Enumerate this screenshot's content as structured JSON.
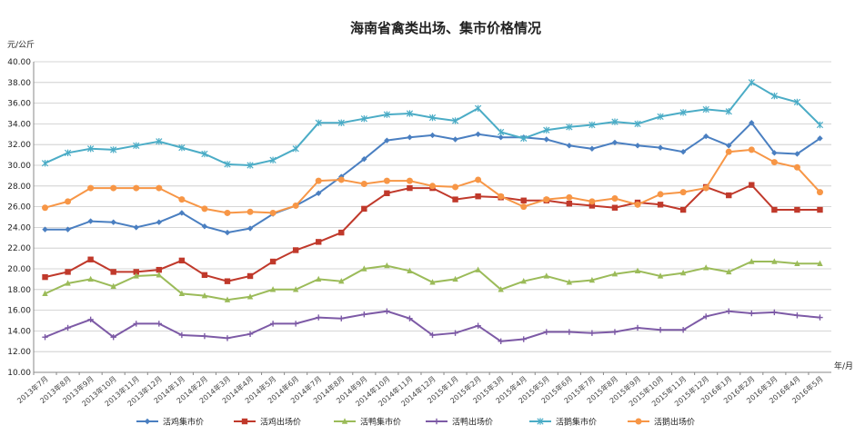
{
  "chart_data": {
    "type": "line",
    "title": "海南省禽类出场、集市价格情况",
    "ylabel": "元/公斤",
    "xlabel": "年/月",
    "ylim": [
      10,
      40
    ],
    "yticks": [
      "10.00",
      "12.00",
      "14.00",
      "16.00",
      "18.00",
      "20.00",
      "22.00",
      "24.00",
      "26.00",
      "28.00",
      "30.00",
      "32.00",
      "34.00",
      "36.00",
      "38.00",
      "40.00"
    ],
    "grid": true,
    "legend_position": "bottom",
    "categories": [
      "2013年7月",
      "2013年8月",
      "2013年9月",
      "2013年10月",
      "2013年11月",
      "2013年12月",
      "2014年1月",
      "2014年2月",
      "2014年3月",
      "2014年4月",
      "2014年5月",
      "2014年6月",
      "2014年7月",
      "2014年8月",
      "2014年9月",
      "2014年10月",
      "2014年11月",
      "2014年12月",
      "2015年1月",
      "2015年2月",
      "2015年3月",
      "2015年4月",
      "2015年5月",
      "2015年6月",
      "2015年7月",
      "2015年8月",
      "2015年9月",
      "2015年10月",
      "2015年11月",
      "2015年12月",
      "2016年1月",
      "2016年2月",
      "2016年3月",
      "2016年4月",
      "2016年5月"
    ],
    "series": [
      {
        "name": "活鸡集市价",
        "color": "#4a7fc1",
        "marker": "diamond",
        "values": [
          23.8,
          23.8,
          24.6,
          24.5,
          24.0,
          24.5,
          25.4,
          24.1,
          23.5,
          23.9,
          25.3,
          26.1,
          27.3,
          28.9,
          30.6,
          32.4,
          32.7,
          32.9,
          32.5,
          33.0,
          32.7,
          32.7,
          32.5,
          31.9,
          31.6,
          32.2,
          31.9,
          31.7,
          31.3,
          32.8,
          31.9,
          34.1,
          31.2,
          31.1,
          32.6
        ]
      },
      {
        "name": "活鸡出场价",
        "color": "#c0392b",
        "marker": "square",
        "values": [
          19.2,
          19.7,
          20.9,
          19.7,
          19.7,
          19.9,
          20.8,
          19.4,
          18.8,
          19.3,
          20.7,
          21.8,
          22.6,
          23.5,
          25.8,
          27.3,
          27.8,
          27.8,
          26.7,
          27.0,
          26.9,
          26.6,
          26.6,
          26.3,
          26.1,
          25.9,
          26.4,
          26.2,
          25.7,
          27.9,
          27.1,
          28.1,
          25.7,
          25.7,
          25.7
        ]
      },
      {
        "name": "活鸭集市价",
        "color": "#9bbb59",
        "marker": "triangle",
        "values": [
          17.6,
          18.6,
          19.0,
          18.3,
          19.3,
          19.4,
          17.6,
          17.4,
          17.0,
          17.3,
          18.0,
          18.0,
          19.0,
          18.8,
          20.0,
          20.3,
          19.8,
          18.7,
          19.0,
          19.9,
          18.0,
          18.8,
          19.3,
          18.7,
          18.9,
          19.5,
          19.8,
          19.3,
          19.6,
          20.1,
          19.7,
          20.7,
          20.7,
          20.5,
          20.5
        ]
      },
      {
        "name": "活鸭出场价",
        "color": "#7d5aa6",
        "marker": "cross",
        "values": [
          13.4,
          14.3,
          15.1,
          13.4,
          14.7,
          14.7,
          13.6,
          13.5,
          13.3,
          13.7,
          14.7,
          14.7,
          15.3,
          15.2,
          15.6,
          15.9,
          15.2,
          13.6,
          13.8,
          14.5,
          13.0,
          13.2,
          13.9,
          13.9,
          13.8,
          13.9,
          14.3,
          14.1,
          14.1,
          15.4,
          15.9,
          15.7,
          15.8,
          15.5,
          15.3
        ]
      },
      {
        "name": "活鹅集市价",
        "color": "#4bacc6",
        "marker": "star",
        "values": [
          30.2,
          31.2,
          31.6,
          31.5,
          31.9,
          32.3,
          31.7,
          31.1,
          30.1,
          30.0,
          30.5,
          31.6,
          34.1,
          34.1,
          34.5,
          34.9,
          35.0,
          34.6,
          34.3,
          35.5,
          33.2,
          32.6,
          33.4,
          33.7,
          33.9,
          34.2,
          34.0,
          34.7,
          35.1,
          35.4,
          35.2,
          38.0,
          36.7,
          36.1,
          33.9
        ]
      },
      {
        "name": "活鹅出场价",
        "color": "#f79646",
        "marker": "circle",
        "values": [
          25.9,
          26.5,
          27.8,
          27.8,
          27.8,
          27.8,
          26.7,
          25.8,
          25.4,
          25.5,
          25.4,
          26.1,
          28.5,
          28.6,
          28.2,
          28.5,
          28.5,
          28.0,
          27.9,
          28.6,
          27.0,
          26.0,
          26.7,
          26.9,
          26.5,
          26.8,
          26.2,
          27.2,
          27.4,
          27.8,
          31.3,
          31.5,
          30.3,
          29.8,
          27.4
        ]
      }
    ]
  }
}
